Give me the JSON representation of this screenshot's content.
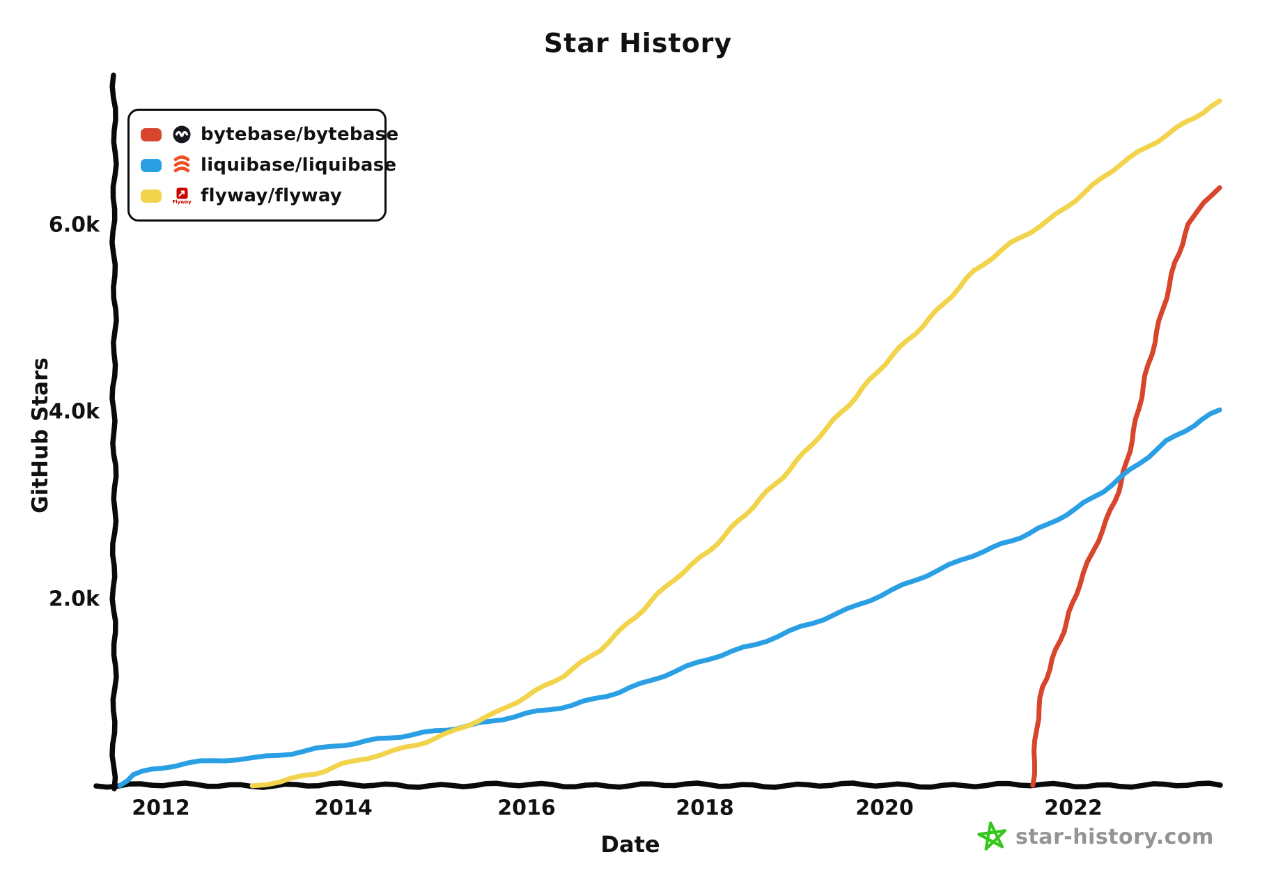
{
  "title": "Star History",
  "axes": {
    "x_label": "Date",
    "y_label": "GitHub Stars",
    "x_ticks": [
      {
        "label": "2012",
        "year": 2012
      },
      {
        "label": "2014",
        "year": 2014
      },
      {
        "label": "2016",
        "year": 2016
      },
      {
        "label": "2018",
        "year": 2018
      },
      {
        "label": "2020",
        "year": 2020
      },
      {
        "label": "2022",
        "year": 2022
      }
    ],
    "y_ticks": [
      {
        "label": "6.0k",
        "value": 6000
      },
      {
        "label": "4.0k",
        "value": 4000
      },
      {
        "label": "2.0k",
        "value": 2000
      }
    ]
  },
  "legend": [
    {
      "label": "bytebase/bytebase",
      "color": "#d6452c",
      "icon": "bytebase-logo"
    },
    {
      "label": "liquibase/liquibase",
      "color": "#2b9fe3",
      "icon": "liquibase-logo"
    },
    {
      "label": "flyway/flyway",
      "color": "#f2d34c",
      "icon": "flyway-logo",
      "icon_caption": "Flyway"
    }
  ],
  "watermark": {
    "text": "star-history.com",
    "star_color": "#35c71e",
    "text_color": "#949494"
  },
  "chart_data": {
    "type": "line",
    "title": "Star History",
    "xlabel": "Date",
    "ylabel": "GitHub Stars",
    "x_unit": "decimal year",
    "y_unit": "GitHub stars",
    "x_range": [
      2011.5,
      2023.8
    ],
    "y_range": [
      0,
      7500
    ],
    "grid": false,
    "legend_position": "top-left",
    "style": "hand-drawn (xkcd-like)",
    "series": [
      {
        "name": "bytebase/bytebase",
        "color": "#d6452c",
        "points": [
          [
            2021.53,
            0
          ],
          [
            2021.58,
            600
          ],
          [
            2021.65,
            1050
          ],
          [
            2021.75,
            1350
          ],
          [
            2021.9,
            1750
          ],
          [
            2022.05,
            2150
          ],
          [
            2022.2,
            2500
          ],
          [
            2022.35,
            2850
          ],
          [
            2022.5,
            3250
          ],
          [
            2022.65,
            3800
          ],
          [
            2022.8,
            4500
          ],
          [
            2022.95,
            5100
          ],
          [
            2023.1,
            5600
          ],
          [
            2023.25,
            6000
          ],
          [
            2023.4,
            6250
          ],
          [
            2023.58,
            6400
          ]
        ]
      },
      {
        "name": "liquibase/liquibase",
        "color": "#2b9fe3",
        "points": [
          [
            2011.55,
            0
          ],
          [
            2011.7,
            120
          ],
          [
            2012.0,
            180
          ],
          [
            2012.3,
            230
          ],
          [
            2012.7,
            270
          ],
          [
            2013.0,
            290
          ],
          [
            2013.3,
            330
          ],
          [
            2013.7,
            390
          ],
          [
            2014.0,
            430
          ],
          [
            2014.5,
            500
          ],
          [
            2015.0,
            580
          ],
          [
            2015.35,
            640
          ],
          [
            2016.0,
            760
          ],
          [
            2016.5,
            850
          ],
          [
            2017.0,
            1000
          ],
          [
            2017.5,
            1180
          ],
          [
            2018.0,
            1350
          ],
          [
            2018.5,
            1500
          ],
          [
            2019.0,
            1700
          ],
          [
            2019.5,
            1880
          ],
          [
            2020.0,
            2080
          ],
          [
            2020.5,
            2300
          ],
          [
            2021.0,
            2520
          ],
          [
            2021.3,
            2620
          ],
          [
            2021.7,
            2780
          ],
          [
            2022.0,
            2950
          ],
          [
            2022.3,
            3150
          ],
          [
            2022.6,
            3380
          ],
          [
            2023.0,
            3680
          ],
          [
            2023.3,
            3850
          ],
          [
            2023.58,
            4020
          ]
        ]
      },
      {
        "name": "flyway/flyway",
        "color": "#f2d34c",
        "points": [
          [
            2013.0,
            0
          ],
          [
            2013.3,
            40
          ],
          [
            2013.7,
            120
          ],
          [
            2014.0,
            220
          ],
          [
            2014.4,
            330
          ],
          [
            2014.8,
            440
          ],
          [
            2015.1,
            540
          ],
          [
            2015.35,
            640
          ],
          [
            2015.7,
            780
          ],
          [
            2016.0,
            950
          ],
          [
            2016.4,
            1180
          ],
          [
            2016.8,
            1450
          ],
          [
            2017.2,
            1800
          ],
          [
            2017.6,
            2200
          ],
          [
            2018.0,
            2520
          ],
          [
            2018.4,
            2900
          ],
          [
            2018.8,
            3300
          ],
          [
            2019.2,
            3750
          ],
          [
            2019.6,
            4150
          ],
          [
            2020.0,
            4600
          ],
          [
            2020.4,
            5000
          ],
          [
            2020.9,
            5500
          ],
          [
            2021.3,
            5800
          ],
          [
            2021.7,
            6050
          ],
          [
            2022.1,
            6350
          ],
          [
            2022.5,
            6650
          ],
          [
            2022.9,
            6900
          ],
          [
            2023.2,
            7100
          ],
          [
            2023.58,
            7330
          ]
        ]
      }
    ]
  }
}
